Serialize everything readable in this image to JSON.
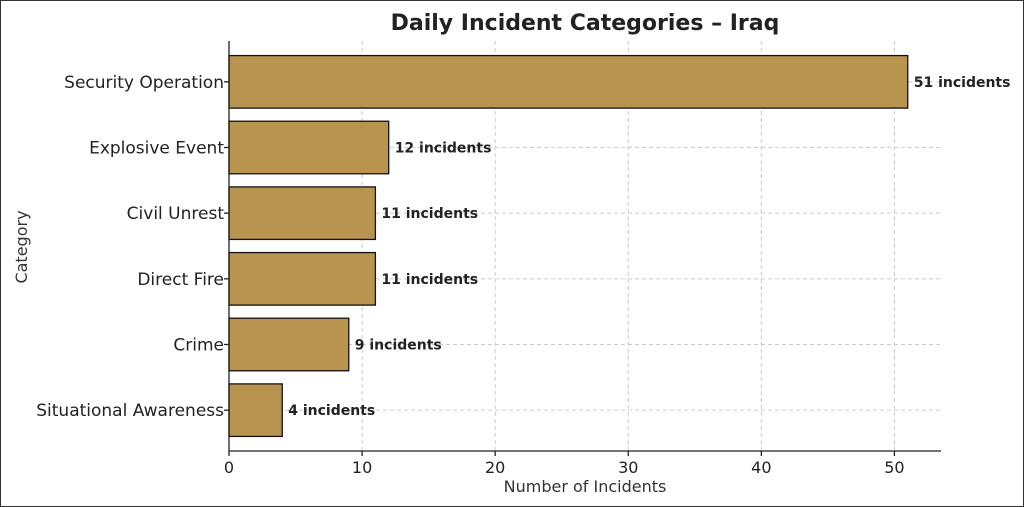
{
  "chart_data": {
    "type": "bar",
    "orientation": "horizontal",
    "title": "Daily Incident Categories – Iraq",
    "xlabel": "Number of Incidents",
    "ylabel": "Category",
    "categories": [
      "Security Operation",
      "Explosive Event",
      "Civil Unrest",
      "Direct Fire",
      "Crime",
      "Situational Awareness"
    ],
    "values": [
      51,
      12,
      11,
      11,
      9,
      4
    ],
    "data_labels": [
      "51 incidents",
      "12 incidents",
      "11 incidents",
      "11 incidents",
      "9 incidents",
      "4 incidents"
    ],
    "xlim": [
      0,
      53.5
    ],
    "xticks": [
      0,
      10,
      20,
      30,
      40,
      50
    ],
    "grid": true,
    "bar_color": "#b8944f",
    "bar_edge_color": "#111111"
  }
}
